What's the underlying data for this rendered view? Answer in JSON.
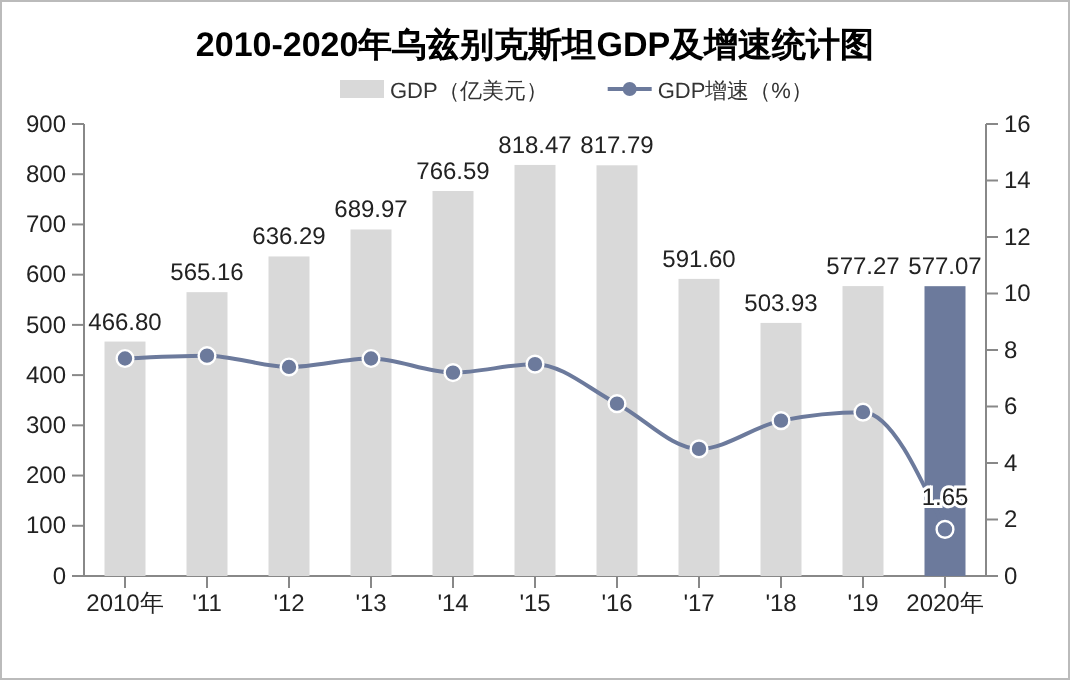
{
  "chart_data": {
    "type": "bar",
    "title": "2010-2020年乌兹别克斯坦GDP及增速统计图",
    "categories": [
      "2010年",
      "'11",
      "'12",
      "'13",
      "'14",
      "'15",
      "'16",
      "'17",
      "'18",
      "'19",
      "2020年"
    ],
    "series": [
      {
        "name": "GDP（亿美元）",
        "color": "#d9d9d9",
        "colors": [
          "#d9d9d9",
          "#d9d9d9",
          "#d9d9d9",
          "#d9d9d9",
          "#d9d9d9",
          "#d9d9d9",
          "#d9d9d9",
          "#d9d9d9",
          "#d9d9d9",
          "#d9d9d9",
          "#6c7a9c"
        ],
        "values": [
          466.8,
          565.16,
          636.29,
          689.97,
          766.59,
          818.47,
          817.79,
          591.6,
          503.93,
          577.27,
          577.07
        ],
        "value_labels": [
          "466.80",
          "565.16",
          "636.29",
          "689.97",
          "766.59",
          "818.47",
          "817.79",
          "591.60",
          "503.93",
          "577.27",
          "577.07"
        ]
      },
      {
        "name": "GDP增速（%）",
        "type": "line",
        "axis": "y2",
        "color": "#6c7a9c",
        "marker": "circle",
        "values": [
          7.7,
          7.8,
          7.4,
          7.7,
          7.2,
          7.5,
          6.1,
          4.5,
          5.5,
          5.8,
          1.65
        ],
        "value_labels": [
          null,
          null,
          null,
          null,
          null,
          null,
          null,
          null,
          null,
          null,
          "1.65"
        ]
      }
    ],
    "ylim": [
      0,
      900
    ],
    "yticks": [
      0,
      100,
      200,
      300,
      400,
      500,
      600,
      700,
      800,
      900
    ],
    "y2lim": [
      0,
      16
    ],
    "y2ticks": [
      0,
      2,
      4,
      6,
      8,
      10,
      12,
      14,
      16
    ],
    "legend": "top",
    "grid": false
  }
}
